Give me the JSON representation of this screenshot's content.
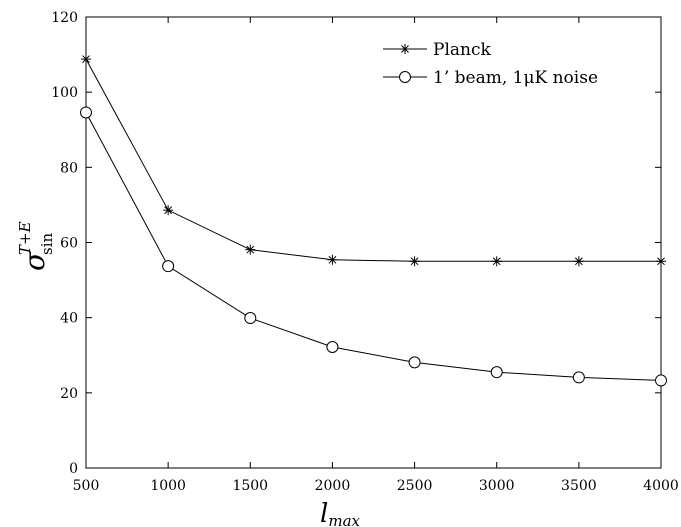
{
  "chart_data": {
    "type": "line",
    "x": [
      500,
      1000,
      1500,
      2000,
      2500,
      3000,
      3500,
      4000
    ],
    "xlim": [
      500,
      4000
    ],
    "ylim": [
      0,
      120
    ],
    "xticks": [
      "500",
      "1000",
      "1500",
      "2000",
      "2500",
      "3000",
      "3500",
      "4000"
    ],
    "yticks": [
      "0",
      "20",
      "40",
      "60",
      "80",
      "100",
      "120"
    ],
    "xlabel": "l",
    "xlabel_sub": "max",
    "ylabel": "σ",
    "ylabel_sup": "T+E",
    "ylabel_sub": "sin",
    "grid": false,
    "legend_position": "top-right",
    "series": [
      {
        "name": "Planck",
        "marker": "asterisk",
        "values": [
          108.8,
          68.6,
          58.1,
          55.4,
          55.0,
          55.0,
          55.0,
          55.0
        ]
      },
      {
        "name": "1’ beam, 1μK noise",
        "marker": "circle",
        "values": [
          94.6,
          53.7,
          39.9,
          32.2,
          28.1,
          25.5,
          24.1,
          23.3
        ]
      }
    ],
    "colors": {
      "line": "#000000",
      "axes": "#000000",
      "background": "#ffffff"
    }
  }
}
